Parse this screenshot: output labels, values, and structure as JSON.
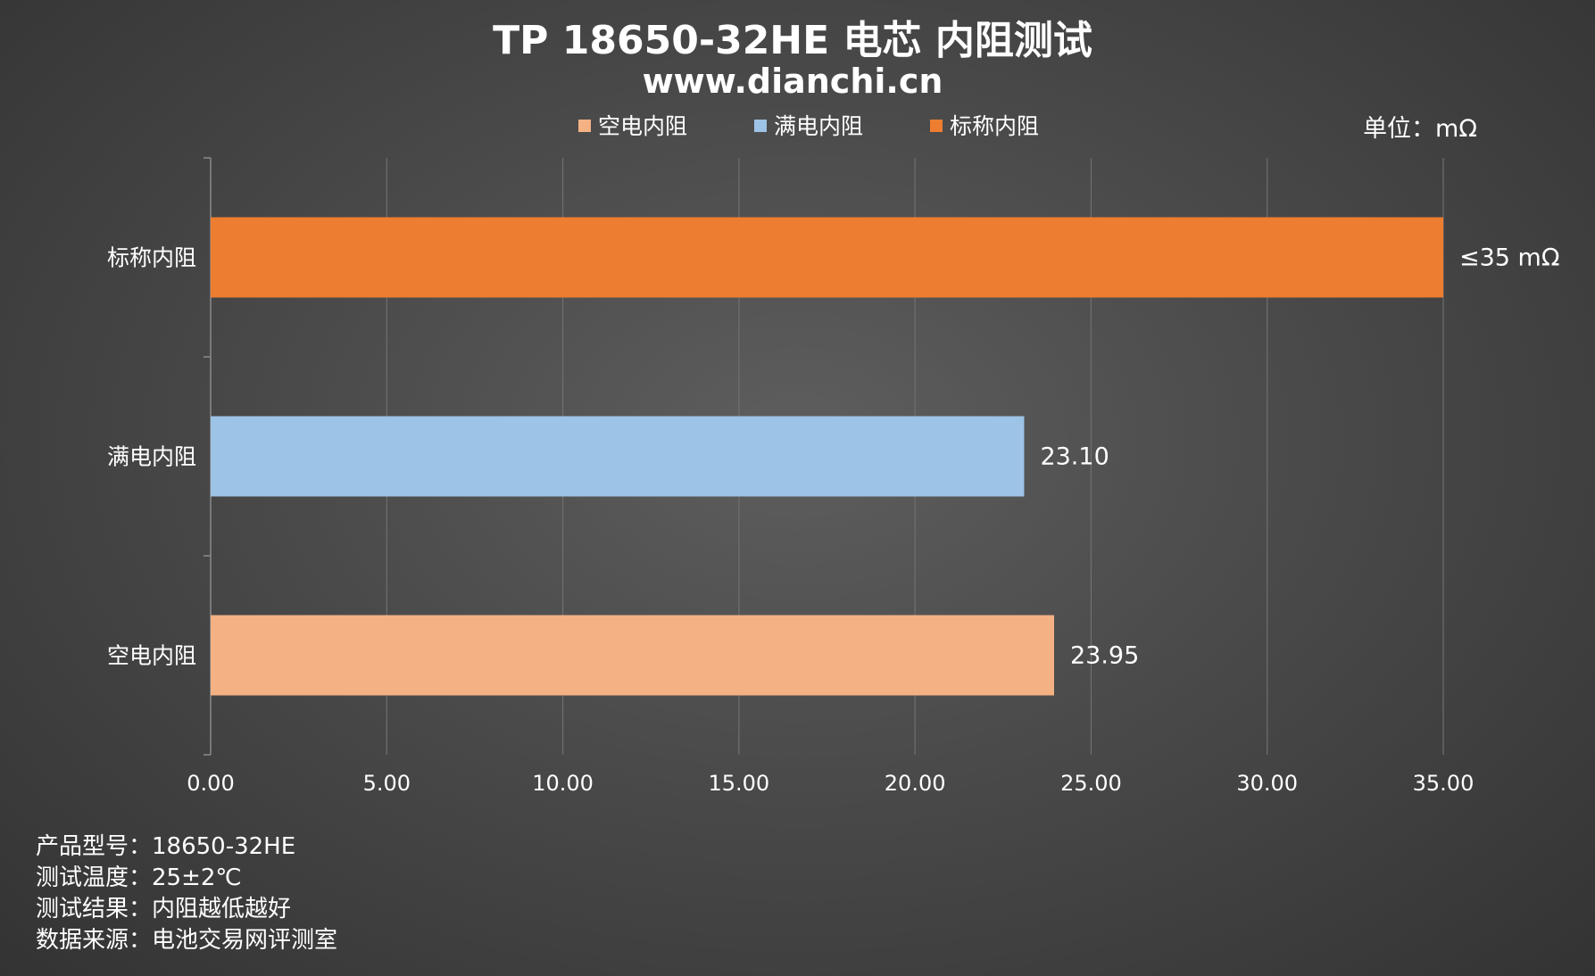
{
  "chart_data": {
    "type": "bar",
    "orientation": "horizontal",
    "title": "TP 18650-32HE 电芯 内阻测试",
    "subtitle": "www.dianchi.cn",
    "unit_label": "单位：mΩ",
    "categories": [
      "标称内阻",
      "满电内阻",
      "空电内阻"
    ],
    "values": [
      35,
      23.1,
      23.95
    ],
    "data_labels": [
      "≤35 mΩ",
      "23.10",
      "23.95"
    ],
    "colors": [
      "#ED7D31",
      "#9DC3E6",
      "#F4B183"
    ],
    "legend": [
      {
        "name": "空电内阻",
        "color": "#F4B183"
      },
      {
        "name": "满电内阻",
        "color": "#9DC3E6"
      },
      {
        "name": "标称内阻",
        "color": "#ED7D31"
      }
    ],
    "legend_position": "top",
    "xlim": [
      0,
      35
    ],
    "xticks": [
      0,
      5,
      10,
      15,
      20,
      25,
      30,
      35
    ],
    "xtick_labels": [
      "0.00",
      "5.00",
      "10.00",
      "15.00",
      "20.00",
      "25.00",
      "30.00",
      "35.00"
    ],
    "grid": true,
    "xlabel": "",
    "ylabel": ""
  },
  "notes": [
    "产品型号：18650-32HE",
    "测试温度：25±2℃",
    "测试结果：内阻越低越好",
    "数据来源：电池交易网评测室"
  ]
}
